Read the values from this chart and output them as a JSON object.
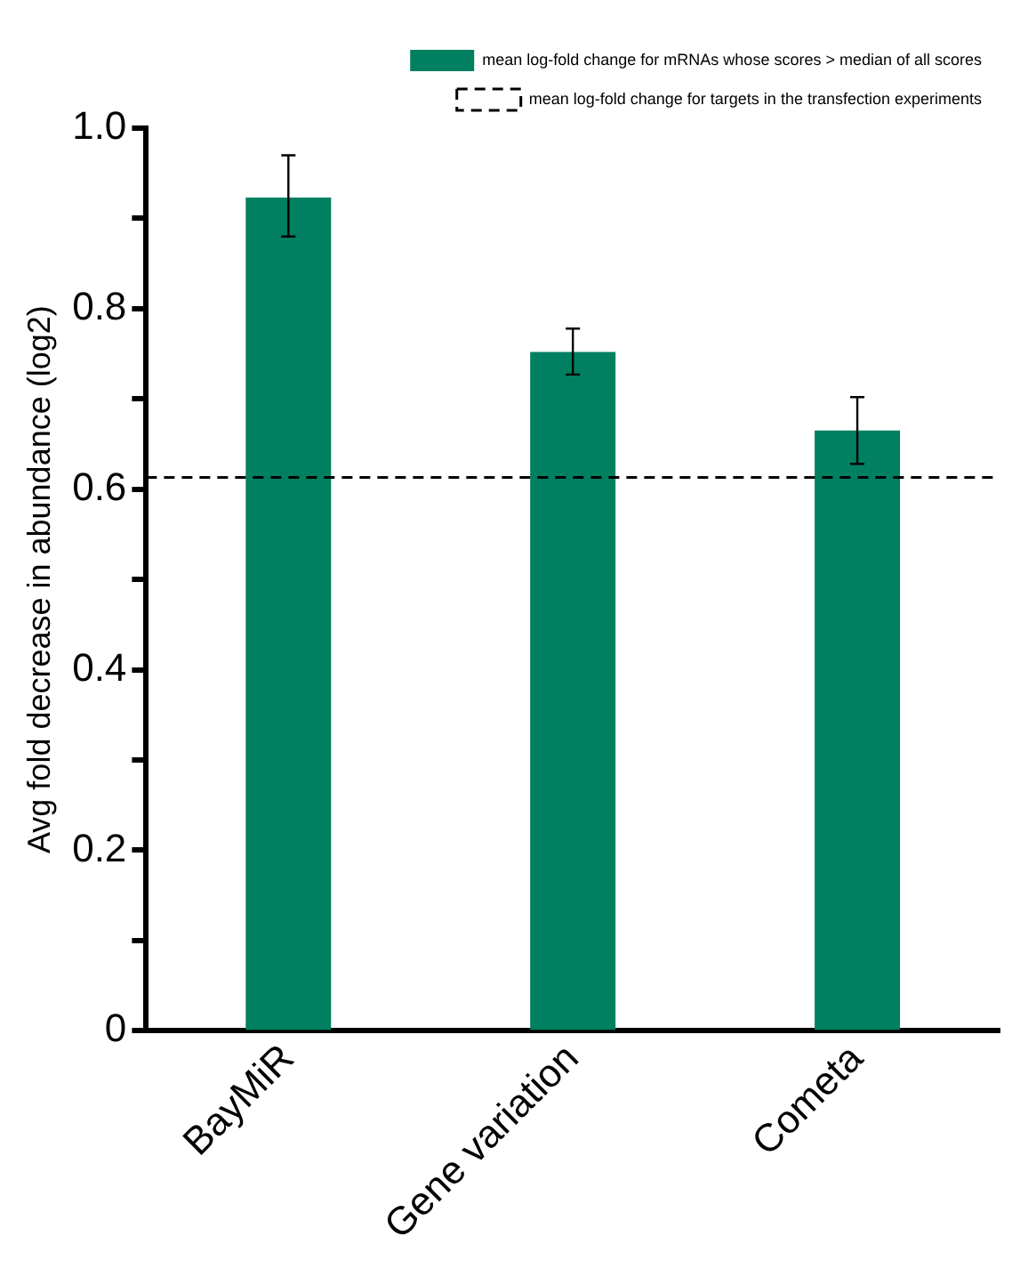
{
  "chart_data": {
    "type": "bar",
    "ylabel": "Avg fold decrease in abundance (log2)",
    "categories": [
      "BayMiR",
      "Gene variation",
      "Cometa"
    ],
    "series": [
      {
        "name": "mean log-fold change for mRNAs whose scores > median of all scores",
        "color": "#008060",
        "values": [
          0.923,
          0.752,
          0.665
        ],
        "errors": [
          [
            0.88,
            0.97
          ],
          [
            0.727,
            0.778
          ],
          [
            0.628,
            0.702
          ]
        ]
      }
    ],
    "ref_lines": [
      {
        "axis": "y",
        "value": 0.613,
        "label": "mean log-fold change for targets in the transfection experiments",
        "line_style": "dashed",
        "color": "#000000"
      }
    ],
    "ylim": [
      0,
      1
    ],
    "yticks": [
      0,
      {
        "value": 0.1,
        "label": null
      },
      0.2,
      {
        "value": 0.3,
        "label": null
      },
      0.4,
      {
        "value": 0.5,
        "label": null
      },
      0.6,
      {
        "value": 0.7,
        "label": null
      },
      0.8,
      {
        "value": 0.9,
        "label": null
      },
      {
        "value": 1,
        "label": "1.0"
      }
    ],
    "grid": false,
    "legend": "top right"
  }
}
